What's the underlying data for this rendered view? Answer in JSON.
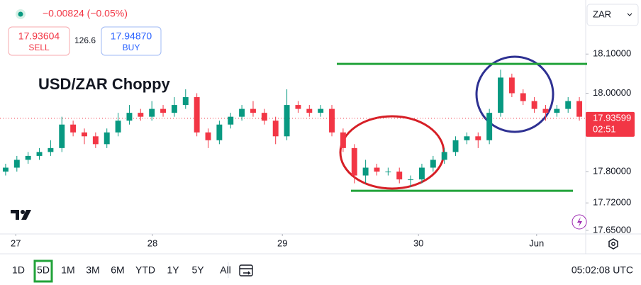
{
  "header": {
    "change": "−0.00824 (−0.05%)",
    "sell_price": "17.93604",
    "sell": "SELL",
    "spread": "126.6",
    "buy_price": "17.94870",
    "buy": "BUY",
    "currency": "ZAR"
  },
  "chart_data": {
    "type": "candlestick",
    "title": "USD/ZAR Choppy",
    "x": [
      0,
      1,
      2,
      3,
      4,
      5,
      6,
      7,
      8,
      9,
      10,
      11,
      12,
      13,
      14,
      15,
      16,
      17,
      18,
      19,
      20,
      21,
      22,
      23,
      24,
      25,
      26,
      27,
      28,
      29,
      30,
      31,
      32,
      33,
      34,
      35,
      36,
      37,
      38,
      39,
      40,
      41,
      42,
      43,
      44,
      45,
      46,
      47,
      48,
      49,
      50,
      51
    ],
    "open": [
      17.8,
      17.81,
      17.83,
      17.84,
      17.85,
      17.86,
      17.92,
      17.9,
      17.89,
      17.87,
      17.9,
      17.93,
      17.95,
      17.94,
      17.96,
      17.95,
      17.97,
      17.99,
      17.9,
      17.88,
      17.92,
      17.94,
      17.96,
      17.95,
      17.93,
      17.89,
      17.97,
      17.96,
      17.95,
      17.96,
      17.9,
      17.86,
      17.79,
      17.81,
      17.8,
      17.8,
      17.78,
      17.78,
      17.81,
      17.83,
      17.85,
      17.88,
      17.89,
      17.88,
      17.95,
      18.04,
      18.0,
      17.98,
      17.96,
      17.95,
      17.96,
      17.98
    ],
    "close": [
      17.81,
      17.83,
      17.84,
      17.85,
      17.86,
      17.92,
      17.9,
      17.89,
      17.87,
      17.9,
      17.93,
      17.95,
      17.94,
      17.96,
      17.95,
      17.97,
      17.99,
      17.9,
      17.88,
      17.92,
      17.94,
      17.96,
      17.95,
      17.93,
      17.89,
      17.97,
      17.96,
      17.95,
      17.96,
      17.9,
      17.86,
      17.79,
      17.81,
      17.8,
      17.8,
      17.78,
      17.78,
      17.81,
      17.83,
      17.85,
      17.88,
      17.89,
      17.88,
      17.95,
      18.04,
      18.0,
      17.98,
      17.96,
      17.95,
      17.96,
      17.98,
      17.94
    ],
    "high": [
      17.82,
      17.84,
      17.85,
      17.86,
      17.88,
      17.94,
      17.93,
      17.91,
      17.9,
      17.91,
      17.95,
      17.97,
      17.96,
      17.98,
      17.97,
      17.99,
      18.01,
      18.0,
      17.91,
      17.93,
      17.95,
      17.97,
      17.98,
      17.96,
      17.94,
      18.01,
      17.98,
      17.97,
      17.97,
      17.97,
      17.91,
      17.87,
      17.83,
      17.82,
      17.81,
      17.81,
      17.79,
      17.82,
      17.84,
      17.86,
      17.89,
      17.9,
      17.9,
      17.96,
      18.06,
      18.05,
      18.01,
      17.99,
      17.97,
      17.97,
      17.99,
      17.99
    ],
    "low": [
      17.79,
      17.8,
      17.82,
      17.83,
      17.84,
      17.85,
      17.89,
      17.87,
      17.86,
      17.86,
      17.89,
      17.92,
      17.93,
      17.93,
      17.94,
      17.94,
      17.96,
      17.89,
      17.86,
      17.87,
      17.91,
      17.93,
      17.94,
      17.92,
      17.87,
      17.88,
      17.95,
      17.94,
      17.94,
      17.89,
      17.85,
      17.77,
      17.77,
      17.79,
      17.79,
      17.77,
      17.76,
      17.77,
      17.8,
      17.82,
      17.84,
      17.87,
      17.86,
      17.87,
      17.94,
      17.99,
      17.97,
      17.95,
      17.93,
      17.94,
      17.95,
      17.93
    ],
    "up_color": "#089981",
    "down_color": "#f23645",
    "xlim": [
      -0.5,
      51.5
    ],
    "xticks": [
      {
        "value": 0.9,
        "label": "27"
      },
      {
        "value": 13.05,
        "label": "28"
      },
      {
        "value": 24.6,
        "label": "29"
      },
      {
        "value": 36.7,
        "label": "30"
      },
      {
        "value": 47.2,
        "label": "Jun"
      }
    ],
    "ylim": [
      17.648,
      18.238
    ],
    "yticks": [
      {
        "value": 18.1,
        "label": "18.10000"
      },
      {
        "value": 18.0,
        "label": "18.00000"
      },
      {
        "value": 17.8,
        "label": "17.80000"
      },
      {
        "value": 17.72,
        "label": "17.72000"
      },
      {
        "value": 17.65,
        "label": "17.65000"
      }
    ],
    "last_price": 17.93599,
    "countdown": "02:51",
    "levels": [
      18.075,
      17.751
    ],
    "level_color": "#22a33a"
  },
  "toolbar": {
    "ranges": [
      "1D",
      "5D",
      "1M",
      "3M",
      "6M",
      "YTD",
      "1Y",
      "5Y",
      "All"
    ],
    "selected": "5D",
    "clock": "05:02:08 UTC"
  }
}
